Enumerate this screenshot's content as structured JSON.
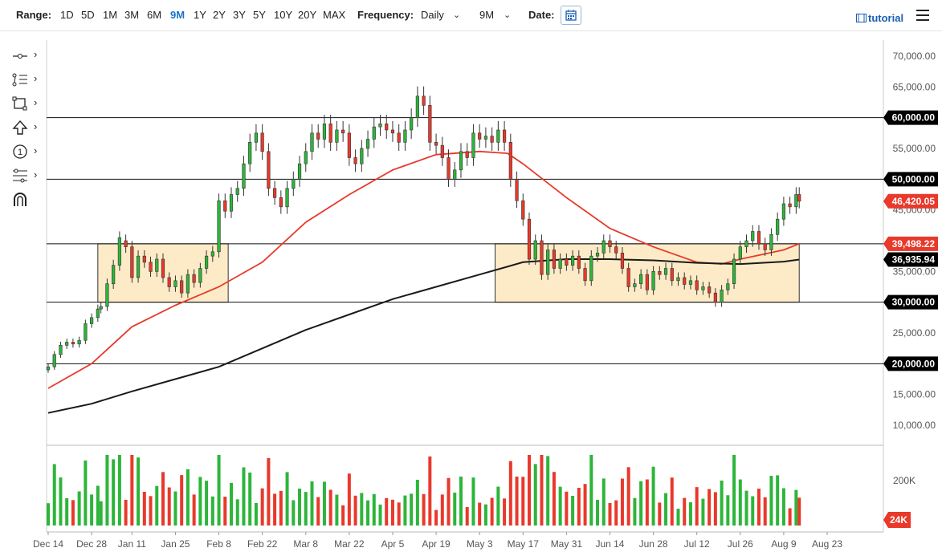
{
  "toolbar": {
    "range_label": "Range:",
    "ranges": [
      "1D",
      "5D",
      "1M",
      "3M",
      "6M",
      "9M",
      "1Y",
      "2Y",
      "3Y",
      "5Y",
      "10Y",
      "20Y",
      "MAX"
    ],
    "active_range": "9M",
    "frequency_label": "Frequency:",
    "frequency_value": "Daily",
    "period_value": "9M",
    "date_label": "Date:",
    "tutorial_label": "tutorial"
  },
  "left_tools": [
    "crosshair-tool-icon",
    "trendline-tool-icon",
    "shape-tool-icon",
    "arrow-tool-icon",
    "annotation-tool-icon",
    "fibonacci-tool-icon",
    "magnet-tool-icon"
  ],
  "chart_data": {
    "type": "candlestick",
    "price_axis": {
      "ticks": [
        "70,000.00",
        "65,000.00",
        "60,000.00",
        "55,000.00",
        "50,000.00",
        "45,000.00",
        "40,000.00",
        "35,000.00",
        "30,000.00",
        "25,000.00",
        "20,000.00",
        "15,000.00",
        "10,000.00"
      ],
      "ylim": [
        6000,
        73000
      ]
    },
    "x_ticks": [
      "Dec 14",
      "Dec 28",
      "Jan 11",
      "Jan 25",
      "Feb 8",
      "Feb 22",
      "Mar 8",
      "Mar 22",
      "Apr 5",
      "Apr 19",
      "May 3",
      "May 17",
      "May 31",
      "Jun 14",
      "Jun 28",
      "Jul 12",
      "Jul 26",
      "Aug 9",
      "Aug 23"
    ],
    "horizontal_lines": [
      60000,
      50000,
      39498.22,
      30000,
      20000
    ],
    "price_labels": [
      {
        "text": "60,000.00",
        "value": 60000,
        "color": "#000000"
      },
      {
        "text": "50,000.00",
        "value": 50000,
        "color": "#000000"
      },
      {
        "text": "46,420.05",
        "value": 46420.05,
        "color": "#e8392b"
      },
      {
        "text": "39,498.22",
        "value": 39498.22,
        "color": "#e8392b"
      },
      {
        "text": "36,935.94",
        "value": 36935.94,
        "color": "#000000"
      },
      {
        "text": "30,000.00",
        "value": 30000,
        "color": "#000000"
      },
      {
        "text": "20,000.00",
        "value": 20000,
        "color": "#000000"
      }
    ],
    "zones": [
      {
        "from": "Dec 30",
        "to": "Feb 11",
        "low": 30000,
        "high": 39500
      },
      {
        "from": "May 8",
        "to": "Aug 14",
        "low": 30000,
        "high": 39500
      }
    ],
    "series": [
      {
        "name": "EMA fast",
        "color": "#e8392b",
        "points": [
          [
            "Dec 14",
            16000
          ],
          [
            "Dec 28",
            20000
          ],
          [
            "Jan 11",
            26000
          ],
          [
            "Jan 25",
            29500
          ],
          [
            "Feb 8",
            32500
          ],
          [
            "Feb 22",
            36500
          ],
          [
            "Mar 8",
            43000
          ],
          [
            "Mar 22",
            47500
          ],
          [
            "Apr 5",
            51500
          ],
          [
            "Apr 19",
            54000
          ],
          [
            "May 3",
            54500
          ],
          [
            "May 12",
            54200
          ],
          [
            "May 17",
            52500
          ],
          [
            "May 31",
            47000
          ],
          [
            "Jun 14",
            42000
          ],
          [
            "Jun 28",
            39000
          ],
          [
            "Jul 12",
            36500
          ],
          [
            "Jul 20",
            36200
          ],
          [
            "Jul 26",
            37000
          ],
          [
            "Aug 9",
            38500
          ],
          [
            "Aug 14",
            39500
          ]
        ]
      },
      {
        "name": "EMA slow",
        "color": "#1a1a1a",
        "points": [
          [
            "Dec 14",
            12000
          ],
          [
            "Dec 28",
            13500
          ],
          [
            "Jan 11",
            15500
          ],
          [
            "Jan 25",
            17500
          ],
          [
            "Feb 8",
            19500
          ],
          [
            "Feb 22",
            22500
          ],
          [
            "Mar 8",
            25500
          ],
          [
            "Mar 22",
            28000
          ],
          [
            "Apr 5",
            30500
          ],
          [
            "Apr 19",
            32500
          ],
          [
            "May 3",
            34500
          ],
          [
            "May 17",
            36500
          ],
          [
            "May 31",
            37000
          ],
          [
            "Jun 14",
            37000
          ],
          [
            "Jun 28",
            36800
          ],
          [
            "Jul 12",
            36400
          ],
          [
            "Jul 26",
            36200
          ],
          [
            "Aug 9",
            36600
          ],
          [
            "Aug 14",
            36936
          ]
        ]
      }
    ],
    "candles": [
      [
        "Dec 14",
        19000,
        19500
      ],
      [
        "Dec 16",
        19500,
        21500
      ],
      [
        "Dec 18",
        21500,
        23000
      ],
      [
        "Dec 20",
        23000,
        23500
      ],
      [
        "Dec 22",
        23500,
        23200
      ],
      [
        "Dec 24",
        23200,
        23800
      ],
      [
        "Dec 26",
        23800,
        26500
      ],
      [
        "Dec 28",
        26500,
        27500
      ],
      [
        "Dec 30",
        27500,
        28900
      ],
      [
        "Jan 1",
        28900,
        29300
      ],
      [
        "Jan 3",
        29300,
        33000
      ],
      [
        "Jan 5",
        33000,
        36000
      ],
      [
        "Jan 7",
        36000,
        40500
      ],
      [
        "Jan 9",
        40000,
        39000
      ],
      [
        "Jan 11",
        39000,
        34000
      ],
      [
        "Jan 13",
        34000,
        37500
      ],
      [
        "Jan 15",
        37500,
        36500
      ],
      [
        "Jan 17",
        36500,
        35000
      ],
      [
        "Jan 19",
        35000,
        37000
      ],
      [
        "Jan 21",
        37000,
        34000
      ],
      [
        "Jan 23",
        34000,
        32500
      ],
      [
        "Jan 25",
        32500,
        33500
      ],
      [
        "Jan 27",
        33500,
        31500
      ],
      [
        "Jan 29",
        31500,
        34500
      ],
      [
        "Jan 31",
        34500,
        33200
      ],
      [
        "Feb 2",
        33200,
        35500
      ],
      [
        "Feb 4",
        35500,
        37500
      ],
      [
        "Feb 6",
        37500,
        38200
      ],
      [
        "Feb 8",
        38200,
        46500
      ],
      [
        "Feb 10",
        46500,
        44800
      ],
      [
        "Feb 12",
        44800,
        47500
      ],
      [
        "Feb 14",
        47500,
        48500
      ],
      [
        "Feb 16",
        48500,
        52500
      ],
      [
        "Feb 18",
        52500,
        56000
      ],
      [
        "Feb 20",
        56000,
        57500
      ],
      [
        "Feb 22",
        57500,
        54500
      ],
      [
        "Feb 24",
        54500,
        48500
      ],
      [
        "Feb 26",
        48500,
        47000
      ],
      [
        "Feb 28",
        47000,
        45500
      ],
      [
        "Mar 2",
        45500,
        48500
      ],
      [
        "Mar 4",
        48500,
        50000
      ],
      [
        "Mar 6",
        50000,
        52500
      ],
      [
        "Mar 8",
        52500,
        54500
      ],
      [
        "Mar 10",
        54500,
        57500
      ],
      [
        "Mar 12",
        57500,
        56500
      ],
      [
        "Mar 14",
        56500,
        59000
      ],
      [
        "Mar 16",
        59000,
        56000
      ],
      [
        "Mar 18",
        56000,
        58000
      ],
      [
        "Mar 20",
        58000,
        57500
      ],
      [
        "Mar 22",
        57500,
        53500
      ],
      [
        "Mar 24",
        53500,
        52500
      ],
      [
        "Mar 26",
        52500,
        55000
      ],
      [
        "Mar 28",
        55000,
        56500
      ],
      [
        "Mar 30",
        56500,
        58500
      ],
      [
        "Apr 1",
        58500,
        59000
      ],
      [
        "Apr 3",
        59000,
        58000
      ],
      [
        "Apr 5",
        58000,
        57500
      ],
      [
        "Apr 7",
        57500,
        56000
      ],
      [
        "Apr 9",
        56000,
        58000
      ],
      [
        "Apr 11",
        58000,
        60000
      ],
      [
        "Apr 13",
        60000,
        63500
      ],
      [
        "Apr 15",
        63500,
        62000
      ],
      [
        "Apr 17",
        62000,
        56000
      ],
      [
        "Apr 19",
        56000,
        55500
      ],
      [
        "Apr 21",
        55500,
        53500
      ],
      [
        "Apr 23",
        53500,
        50000
      ],
      [
        "Apr 25",
        50000,
        51500
      ],
      [
        "Apr 27",
        51500,
        54500
      ],
      [
        "Apr 29",
        54500,
        53500
      ],
      [
        "May 1",
        53500,
        57500
      ],
      [
        "May 3",
        57500,
        56500
      ],
      [
        "May 5",
        56500,
        57000
      ],
      [
        "May 7",
        57000,
        56000
      ],
      [
        "May 9",
        56000,
        58000
      ],
      [
        "May 11",
        58000,
        56000
      ],
      [
        "May 13",
        56000,
        50000
      ],
      [
        "May 15",
        50000,
        46500
      ],
      [
        "May 17",
        46500,
        43500
      ],
      [
        "May 19",
        43500,
        37000
      ],
      [
        "May 21",
        37000,
        40000
      ],
      [
        "May 23",
        40000,
        34500
      ],
      [
        "May 25",
        34500,
        38500
      ],
      [
        "May 27",
        38500,
        35500
      ],
      [
        "May 29",
        35500,
        37000
      ],
      [
        "May 31",
        37000,
        36000
      ],
      [
        "Jun 2",
        36000,
        37500
      ],
      [
        "Jun 4",
        37500,
        35500
      ],
      [
        "Jun 6",
        35500,
        33500
      ],
      [
        "Jun 8",
        33500,
        37500
      ],
      [
        "Jun 10",
        37500,
        38000
      ],
      [
        "Jun 12",
        38000,
        40000
      ],
      [
        "Jun 14",
        40000,
        39000
      ],
      [
        "Jun 16",
        39000,
        38000
      ],
      [
        "Jun 18",
        38000,
        35500
      ],
      [
        "Jun 20",
        35500,
        32500
      ],
      [
        "Jun 22",
        32500,
        33000
      ],
      [
        "Jun 24",
        33000,
        34500
      ],
      [
        "Jun 26",
        34500,
        32000
      ],
      [
        "Jun 28",
        32000,
        35000
      ],
      [
        "Jun 30",
        35000,
        34500
      ],
      [
        "Jul 2",
        34500,
        35500
      ],
      [
        "Jul 4",
        35500,
        33500
      ],
      [
        "Jul 6",
        33500,
        34000
      ],
      [
        "Jul 8",
        34000,
        32900
      ],
      [
        "Jul 10",
        32900,
        33500
      ],
      [
        "Jul 12",
        33500,
        32000
      ],
      [
        "Jul 14",
        32000,
        32500
      ],
      [
        "Jul 16",
        32500,
        31500
      ],
      [
        "Jul 18",
        31500,
        30000
      ],
      [
        "Jul 20",
        30000,
        32000
      ],
      [
        "Jul 22",
        32000,
        33000
      ],
      [
        "Jul 24",
        33000,
        37000
      ],
      [
        "Jul 26",
        37000,
        39000
      ],
      [
        "Jul 28",
        39000,
        40000
      ],
      [
        "Jul 30",
        40000,
        41500
      ],
      [
        "Aug 1",
        41500,
        39500
      ],
      [
        "Aug 3",
        39500,
        38500
      ],
      [
        "Aug 5",
        38500,
        41000
      ],
      [
        "Aug 7",
        41000,
        43500
      ],
      [
        "Aug 9",
        43500,
        46000
      ],
      [
        "Aug 11",
        46000,
        45500
      ],
      [
        "Aug 13",
        45500,
        47500
      ],
      [
        "Aug 14",
        47500,
        46420
      ]
    ],
    "volume": {
      "axis_label": "200K",
      "last_label": "24K",
      "last_color": "#e8392b"
    }
  }
}
